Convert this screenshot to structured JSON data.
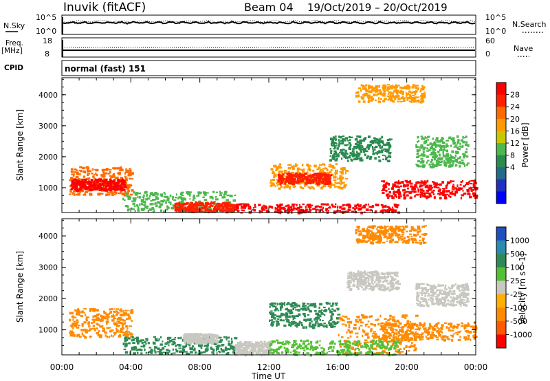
{
  "header": {
    "station": "Inuvik (fitACF)",
    "beam": "Beam 04",
    "dates": "19/Oct/2019 – 20/Oct/2019"
  },
  "nsky_panel": {
    "label": "N.Sky",
    "right_label": "N.Search",
    "left_ticks": [
      "10^5",
      "10^0"
    ],
    "right_ticks": [
      "10^5",
      "10^0"
    ]
  },
  "freq_panel": {
    "label_line1": "Freq.",
    "label_line2": "[MHz]",
    "right_label": "Nave",
    "left_ticks": [
      "18",
      "8"
    ],
    "right_ticks": [
      "60",
      "0"
    ]
  },
  "cpid_panel": {
    "label": "CPID",
    "text": "normal (fast) 151"
  },
  "chart_data": [
    {
      "type": "heatmap",
      "name": "power-panel",
      "ylabel": "Slant Range [km]",
      "yticks": [
        "4000",
        "3000",
        "2000",
        "1000"
      ],
      "ylim": [
        200,
        4550
      ],
      "xlim_hours": [
        0,
        24
      ],
      "colorbar": {
        "label": "Power [dB]",
        "ticks": [
          "28",
          "24",
          "20",
          "16",
          "12",
          "8",
          "4"
        ],
        "colors": [
          "#ff0000",
          "#ff2000",
          "#ff6a00",
          "#ff9a00",
          "#c8c800",
          "#4db84d",
          "#2a8a50",
          "#226a8a",
          "#2030c0",
          "#0000ff"
        ]
      },
      "regions": [
        {
          "t0": 0.4,
          "t1": 4.0,
          "r0": 800,
          "r1": 1700,
          "color": "#ff6a00"
        },
        {
          "t0": 0.5,
          "t1": 3.6,
          "r0": 950,
          "r1": 1300,
          "color": "#ff0000"
        },
        {
          "t0": 3.5,
          "t1": 10.0,
          "r0": 250,
          "r1": 900,
          "color": "#4db84d"
        },
        {
          "t0": 6.5,
          "t1": 10.0,
          "r0": 250,
          "r1": 550,
          "color": "#ff2000"
        },
        {
          "t0": 10.0,
          "t1": 19.5,
          "r0": 220,
          "r1": 500,
          "color": "#ff0000"
        },
        {
          "t0": 12.0,
          "t1": 16.5,
          "r0": 1000,
          "r1": 1800,
          "color": "#ff9a00"
        },
        {
          "t0": 12.5,
          "t1": 15.5,
          "r0": 1150,
          "r1": 1500,
          "color": "#ff2000"
        },
        {
          "t0": 18.5,
          "t1": 24.0,
          "r0": 700,
          "r1": 1250,
          "color": "#ff0000"
        },
        {
          "t0": 15.5,
          "t1": 19.0,
          "r0": 1900,
          "r1": 2700,
          "color": "#2a8a50"
        },
        {
          "t0": 17.0,
          "t1": 21.0,
          "r0": 3800,
          "r1": 4350,
          "color": "#ff9a00"
        },
        {
          "t0": 20.5,
          "t1": 23.5,
          "r0": 1700,
          "r1": 2700,
          "color": "#4db84d"
        }
      ]
    },
    {
      "type": "heatmap",
      "name": "velocity-panel",
      "ylabel": "Slant Range [km]",
      "yticks": [
        "4000",
        "3000",
        "2000",
        "1000"
      ],
      "ylim": [
        200,
        4550
      ],
      "xlim_hours": [
        0,
        24
      ],
      "xticks": [
        "00:00",
        "04:00",
        "08:00",
        "12:00",
        "16:00",
        "20:00",
        "00:00"
      ],
      "xlabel": "Time UT",
      "colorbar": {
        "label": "Velocity [m s^-1]",
        "ticks": [
          "1000",
          "500",
          "100",
          "25",
          "-25",
          "-100",
          "-500",
          "-1000"
        ],
        "colors": [
          "#1f4fbf",
          "#2a8ab0",
          "#2f8a55",
          "#55c035",
          "#c8c8c0",
          "#ffb000",
          "#ff8a00",
          "#ff5a00",
          "#ff0000"
        ]
      },
      "regions": [
        {
          "t0": 0.4,
          "t1": 4.0,
          "r0": 800,
          "r1": 1700,
          "color": "#ff8a00"
        },
        {
          "t0": 3.5,
          "t1": 10.0,
          "r0": 250,
          "r1": 800,
          "color": "#2f8a55"
        },
        {
          "t0": 7.0,
          "t1": 9.0,
          "r0": 600,
          "r1": 900,
          "color": "#c8c8c0"
        },
        {
          "t0": 10.0,
          "t1": 12.0,
          "r0": 220,
          "r1": 650,
          "color": "#c8c8c0"
        },
        {
          "t0": 12.0,
          "t1": 16.0,
          "r0": 1100,
          "r1": 1900,
          "color": "#2f8a55"
        },
        {
          "t0": 16.0,
          "t1": 20.5,
          "r0": 250,
          "r1": 1500,
          "color": "#ff8a00"
        },
        {
          "t0": 18.5,
          "t1": 24.0,
          "r0": 700,
          "r1": 1250,
          "color": "#ff8a00"
        },
        {
          "t0": 12.0,
          "t1": 19.5,
          "r0": 220,
          "r1": 700,
          "color": "#55c035"
        },
        {
          "t0": 17.0,
          "t1": 21.0,
          "r0": 3800,
          "r1": 4350,
          "color": "#ff8a00"
        },
        {
          "t0": 16.5,
          "t1": 19.5,
          "r0": 2300,
          "r1": 2900,
          "color": "#c8c8c0"
        },
        {
          "t0": 20.5,
          "t1": 23.5,
          "r0": 1800,
          "r1": 2500,
          "color": "#c8c8c0"
        }
      ]
    }
  ]
}
